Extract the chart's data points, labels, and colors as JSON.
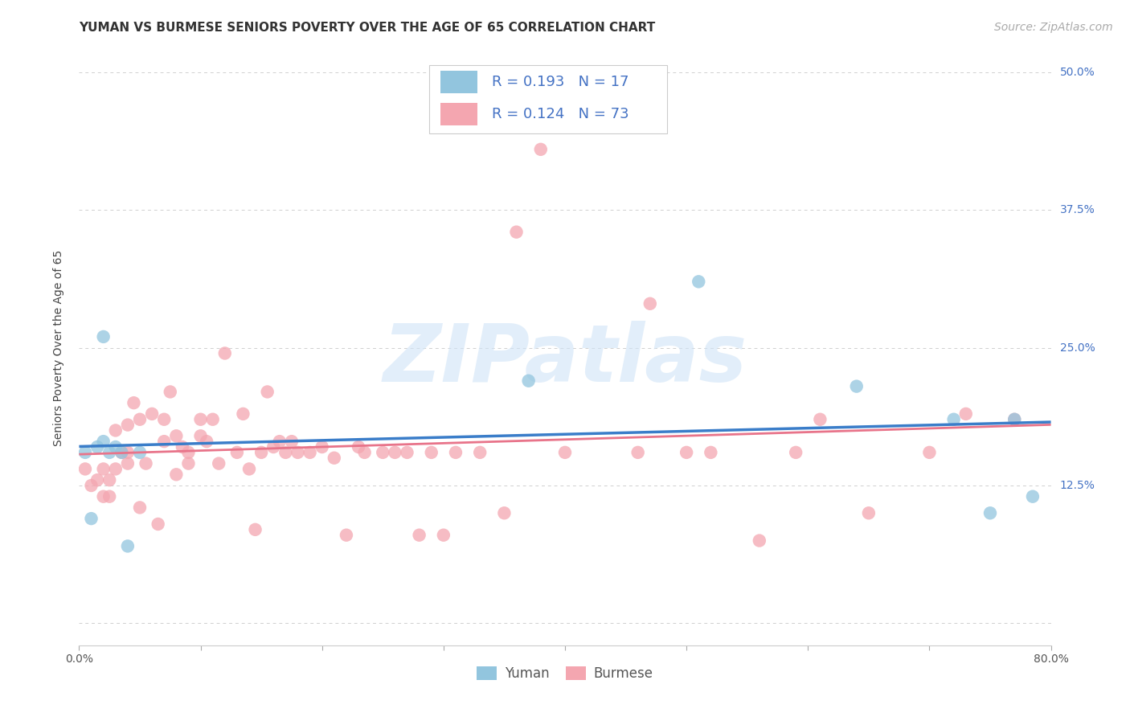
{
  "title": "YUMAN VS BURMESE SENIORS POVERTY OVER THE AGE OF 65 CORRELATION CHART",
  "source": "Source: ZipAtlas.com",
  "ylabel": "Seniors Poverty Over the Age of 65",
  "xlim": [
    0.0,
    0.8
  ],
  "ylim": [
    -0.02,
    0.52
  ],
  "xticks": [
    0.0,
    0.1,
    0.2,
    0.3,
    0.4,
    0.5,
    0.6,
    0.7,
    0.8
  ],
  "xticklabels": [
    "0.0%",
    "",
    "",
    "",
    "",
    "",
    "",
    "",
    "80.0%"
  ],
  "ytick_positions": [
    0.0,
    0.125,
    0.25,
    0.375,
    0.5
  ],
  "yticklabels": [
    "",
    "12.5%",
    "25.0%",
    "37.5%",
    "50.0%"
  ],
  "yuman_color": "#92c5de",
  "burmese_color": "#f4a6b0",
  "yuman_line_color": "#3a7dc9",
  "burmese_line_color": "#e8748a",
  "R_yuman": "0.193",
  "N_yuman": "17",
  "R_burmese": "0.124",
  "N_burmese": "73",
  "legend_color": "#4472c4",
  "watermark_text": "ZIPatlas",
  "watermark_color": "#d0e4f7",
  "yuman_x": [
    0.005,
    0.01,
    0.015,
    0.02,
    0.02,
    0.025,
    0.03,
    0.035,
    0.04,
    0.05,
    0.37,
    0.51,
    0.64,
    0.72,
    0.75,
    0.77,
    0.785
  ],
  "yuman_y": [
    0.155,
    0.095,
    0.16,
    0.165,
    0.26,
    0.155,
    0.16,
    0.155,
    0.07,
    0.155,
    0.22,
    0.31,
    0.215,
    0.185,
    0.1,
    0.185,
    0.115
  ],
  "burmese_x": [
    0.005,
    0.01,
    0.015,
    0.02,
    0.02,
    0.025,
    0.025,
    0.03,
    0.03,
    0.035,
    0.04,
    0.04,
    0.04,
    0.045,
    0.05,
    0.05,
    0.055,
    0.06,
    0.065,
    0.07,
    0.07,
    0.075,
    0.08,
    0.08,
    0.085,
    0.09,
    0.09,
    0.1,
    0.1,
    0.105,
    0.11,
    0.115,
    0.12,
    0.13,
    0.135,
    0.14,
    0.145,
    0.15,
    0.155,
    0.16,
    0.165,
    0.17,
    0.175,
    0.18,
    0.19,
    0.2,
    0.21,
    0.22,
    0.23,
    0.235,
    0.25,
    0.26,
    0.27,
    0.28,
    0.29,
    0.3,
    0.31,
    0.33,
    0.35,
    0.36,
    0.38,
    0.4,
    0.46,
    0.47,
    0.5,
    0.52,
    0.56,
    0.59,
    0.61,
    0.65,
    0.7,
    0.73,
    0.77
  ],
  "burmese_y": [
    0.14,
    0.125,
    0.13,
    0.14,
    0.115,
    0.115,
    0.13,
    0.14,
    0.175,
    0.155,
    0.145,
    0.18,
    0.155,
    0.2,
    0.185,
    0.105,
    0.145,
    0.19,
    0.09,
    0.165,
    0.185,
    0.21,
    0.135,
    0.17,
    0.16,
    0.155,
    0.145,
    0.185,
    0.17,
    0.165,
    0.185,
    0.145,
    0.245,
    0.155,
    0.19,
    0.14,
    0.085,
    0.155,
    0.21,
    0.16,
    0.165,
    0.155,
    0.165,
    0.155,
    0.155,
    0.16,
    0.15,
    0.08,
    0.16,
    0.155,
    0.155,
    0.155,
    0.155,
    0.08,
    0.155,
    0.08,
    0.155,
    0.155,
    0.1,
    0.355,
    0.43,
    0.155,
    0.155,
    0.29,
    0.155,
    0.155,
    0.075,
    0.155,
    0.185,
    0.1,
    0.155,
    0.19,
    0.185
  ],
  "background_color": "#ffffff",
  "grid_color": "#d0d0d0",
  "title_fontsize": 11,
  "axis_label_fontsize": 10,
  "tick_fontsize": 10,
  "legend_fontsize": 13,
  "source_fontsize": 10
}
